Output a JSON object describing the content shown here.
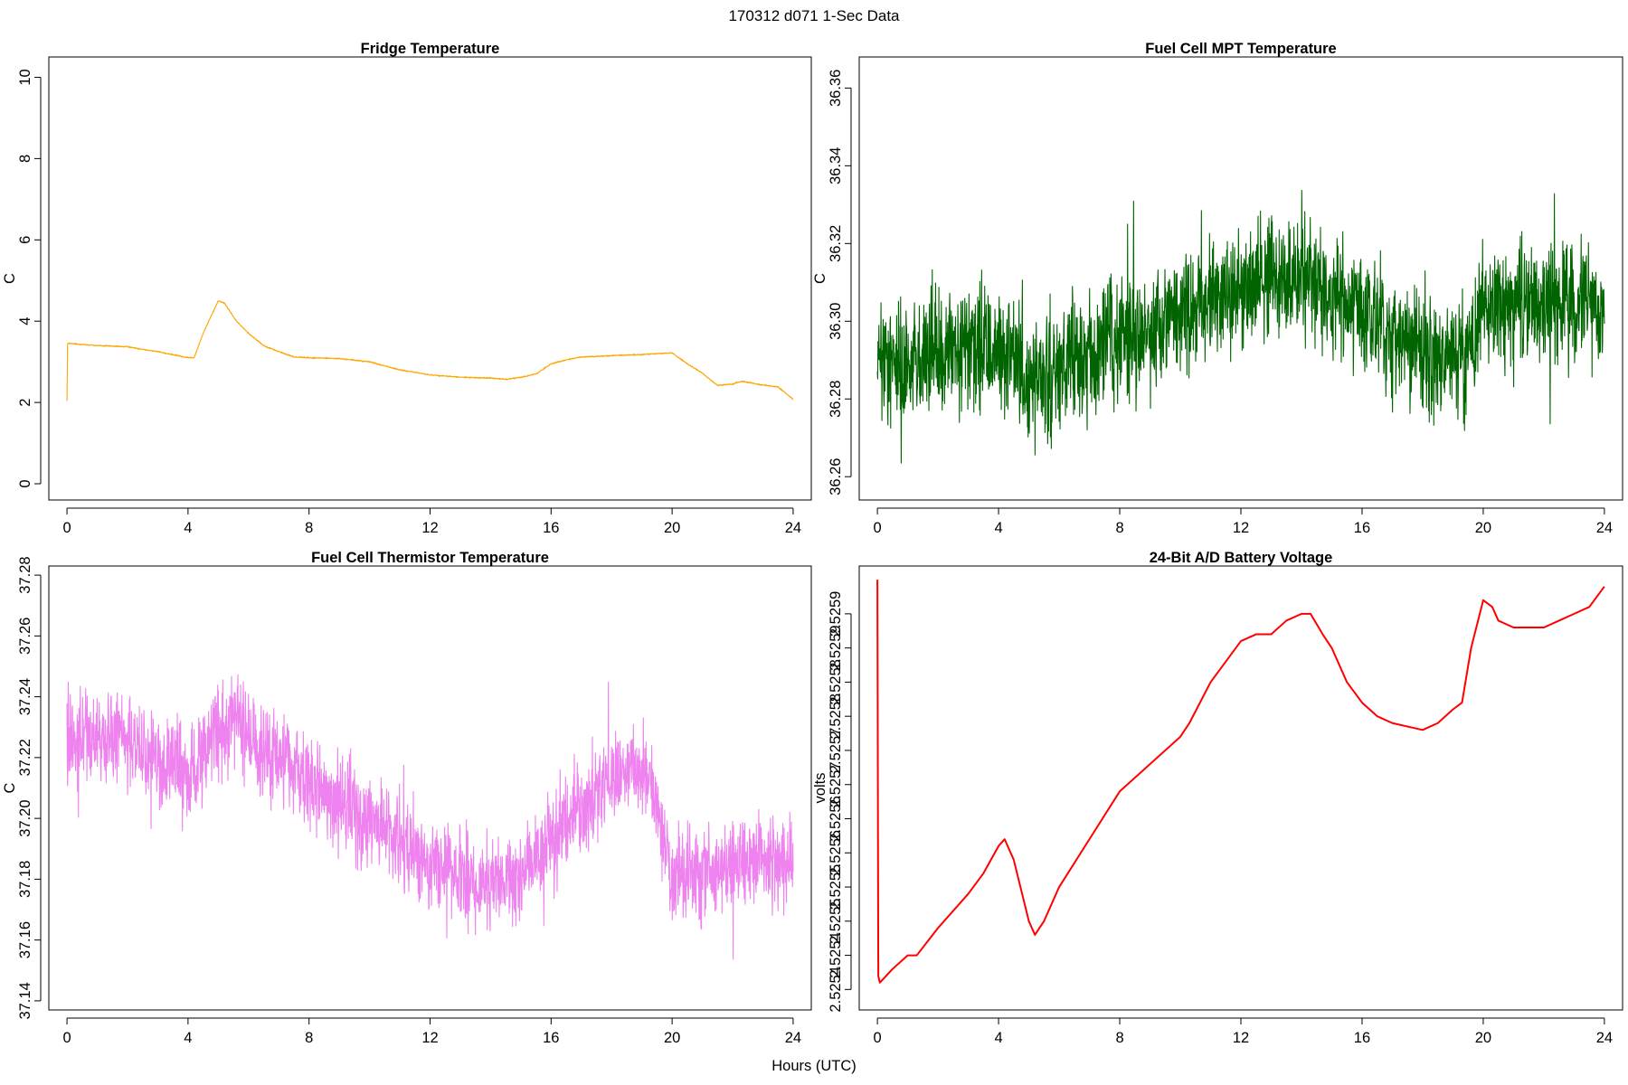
{
  "figure": {
    "title": "170312   d071   1-Sec Data",
    "xlabel": "Hours (UTC)"
  },
  "chart_data": [
    {
      "type": "line",
      "title": "Fridge Temperature",
      "ylabel": "C",
      "color": "#FFA500",
      "noise": 0.01,
      "xlim": [
        -0.6,
        24.6
      ],
      "ylim": [
        -0.4,
        10.5
      ],
      "xticks": [
        0,
        4,
        8,
        12,
        16,
        20,
        24
      ],
      "yticks": [
        0,
        2,
        4,
        6,
        8,
        10
      ],
      "ytick_labels": [
        "0",
        "2",
        "4",
        "6",
        "8",
        "10"
      ],
      "series": [
        {
          "name": "Fridge Temperature",
          "x": [
            0,
            0.02,
            0.1,
            1,
            2,
            3,
            4,
            4.2,
            4.5,
            5.0,
            5.2,
            5.6,
            6.0,
            6.5,
            7,
            7.5,
            8,
            9,
            10,
            11,
            12,
            13,
            14,
            14.5,
            15,
            15.5,
            16,
            16.5,
            17,
            18,
            19,
            19.5,
            20,
            20.5,
            21,
            21.5,
            22,
            22.3,
            22.7,
            23,
            23.5,
            24
          ],
          "y": [
            2.05,
            3.45,
            3.45,
            3.4,
            3.37,
            3.25,
            3.1,
            3.1,
            3.7,
            4.5,
            4.45,
            4.0,
            3.7,
            3.4,
            3.25,
            3.12,
            3.1,
            3.08,
            3.0,
            2.8,
            2.68,
            2.62,
            2.6,
            2.57,
            2.62,
            2.7,
            2.95,
            3.05,
            3.12,
            3.15,
            3.18,
            3.2,
            3.22,
            2.95,
            2.72,
            2.42,
            2.45,
            2.52,
            2.47,
            2.43,
            2.38,
            2.08
          ]
        }
      ]
    },
    {
      "type": "line",
      "title": "Fuel Cell MPT Temperature",
      "ylabel": "C",
      "color": "#006400",
      "noise": 0.011,
      "xlim": [
        -0.6,
        24.6
      ],
      "ylim": [
        36.254,
        36.368
      ],
      "xticks": [
        0,
        4,
        8,
        12,
        16,
        20,
        24
      ],
      "yticks": [
        36.26,
        36.28,
        36.3,
        36.32,
        36.34,
        36.36
      ],
      "ytick_labels": [
        "36.26",
        "36.28",
        "36.30",
        "36.32",
        "36.34",
        "36.36"
      ],
      "series": [
        {
          "name": "Fuel Cell MPT Temperature",
          "x": [
            0,
            2,
            4,
            4.5,
            5,
            6,
            8,
            10,
            12,
            14,
            16,
            18,
            19,
            19.6,
            20,
            22,
            24
          ],
          "y": [
            36.289,
            36.291,
            36.293,
            36.29,
            36.283,
            36.287,
            36.295,
            36.302,
            36.31,
            36.311,
            36.302,
            36.293,
            36.29,
            36.292,
            36.303,
            36.304,
            36.305
          ]
        }
      ]
    },
    {
      "type": "line",
      "title": "Fuel Cell Thermistor Temperature",
      "ylabel": "C",
      "color": "#EE82EE",
      "noise": 0.0105,
      "xlim": [
        -0.6,
        24.6
      ],
      "ylim": [
        37.137,
        37.283
      ],
      "xticks": [
        0,
        4,
        8,
        12,
        16,
        20,
        24
      ],
      "yticks": [
        37.14,
        37.16,
        37.18,
        37.2,
        37.22,
        37.24,
        37.26,
        37.28
      ],
      "ytick_labels": [
        "37.14",
        "37.16",
        "37.18",
        "37.20",
        "37.22",
        "37.24",
        "37.26",
        "37.28"
      ],
      "series": [
        {
          "name": "Fuel Cell Thermistor Temperature",
          "x": [
            0,
            2,
            4,
            5,
            5.5,
            6,
            8,
            10,
            12,
            14,
            15,
            16,
            17,
            18,
            19,
            19.4,
            20,
            21,
            22,
            23,
            24
          ],
          "y": [
            37.228,
            37.225,
            37.215,
            37.228,
            37.234,
            37.225,
            37.212,
            37.2,
            37.185,
            37.178,
            37.18,
            37.192,
            37.205,
            37.212,
            37.215,
            37.21,
            37.18,
            37.182,
            37.185,
            37.187,
            37.185
          ]
        }
      ]
    },
    {
      "type": "line",
      "title": "24-Bit A/D Battery Voltage",
      "ylabel": "volts",
      "color": "#FF0000",
      "noise": 0,
      "xlim": [
        -0.6,
        24.6
      ],
      "ylim": [
        2.52532,
        2.52597
      ],
      "xticks": [
        0,
        4,
        8,
        12,
        16,
        20,
        24
      ],
      "yticks": [
        2.52535,
        2.5254,
        2.52545,
        2.5255,
        2.52555,
        2.5256,
        2.52565,
        2.5257,
        2.52575,
        2.5258,
        2.52585,
        2.5259
      ],
      "ytick_labels": [
        "2.5254",
        "2.5254",
        "2.5255",
        "2.5255",
        "2.5256",
        "2.5256",
        "2.5257",
        "2.5257",
        "2.5258",
        "2.5258",
        "2.5259",
        "2.5259"
      ],
      "series": [
        {
          "name": "24-Bit A/D Battery Voltage",
          "x": [
            0,
            0.03,
            0.08,
            0.5,
            1,
            1.3,
            2,
            3,
            3.5,
            4,
            4.2,
            4.5,
            5,
            5.2,
            5.5,
            6,
            7,
            8,
            9,
            10,
            10.3,
            11,
            12,
            12.5,
            13,
            13.5,
            14,
            14.3,
            14.7,
            15,
            15.5,
            16,
            16.5,
            17,
            18,
            18.5,
            19,
            19.3,
            19.6,
            20,
            20.3,
            20.5,
            21,
            21.5,
            22,
            22.5,
            23,
            23.5,
            24
          ],
          "y": [
            2.52595,
            2.52537,
            2.52536,
            2.52538,
            2.5254,
            2.5254,
            2.52544,
            2.52549,
            2.52552,
            2.52556,
            2.52557,
            2.52554,
            2.52545,
            2.52543,
            2.52545,
            2.5255,
            2.52557,
            2.52564,
            2.52568,
            2.52572,
            2.52574,
            2.5258,
            2.52586,
            2.52587,
            2.52587,
            2.52589,
            2.5259,
            2.5259,
            2.52587,
            2.52585,
            2.5258,
            2.52577,
            2.52575,
            2.52574,
            2.52573,
            2.52574,
            2.52576,
            2.52577,
            2.52585,
            2.52592,
            2.52591,
            2.52589,
            2.52588,
            2.52588,
            2.52588,
            2.52589,
            2.5259,
            2.52591,
            2.52594
          ]
        }
      ]
    }
  ]
}
